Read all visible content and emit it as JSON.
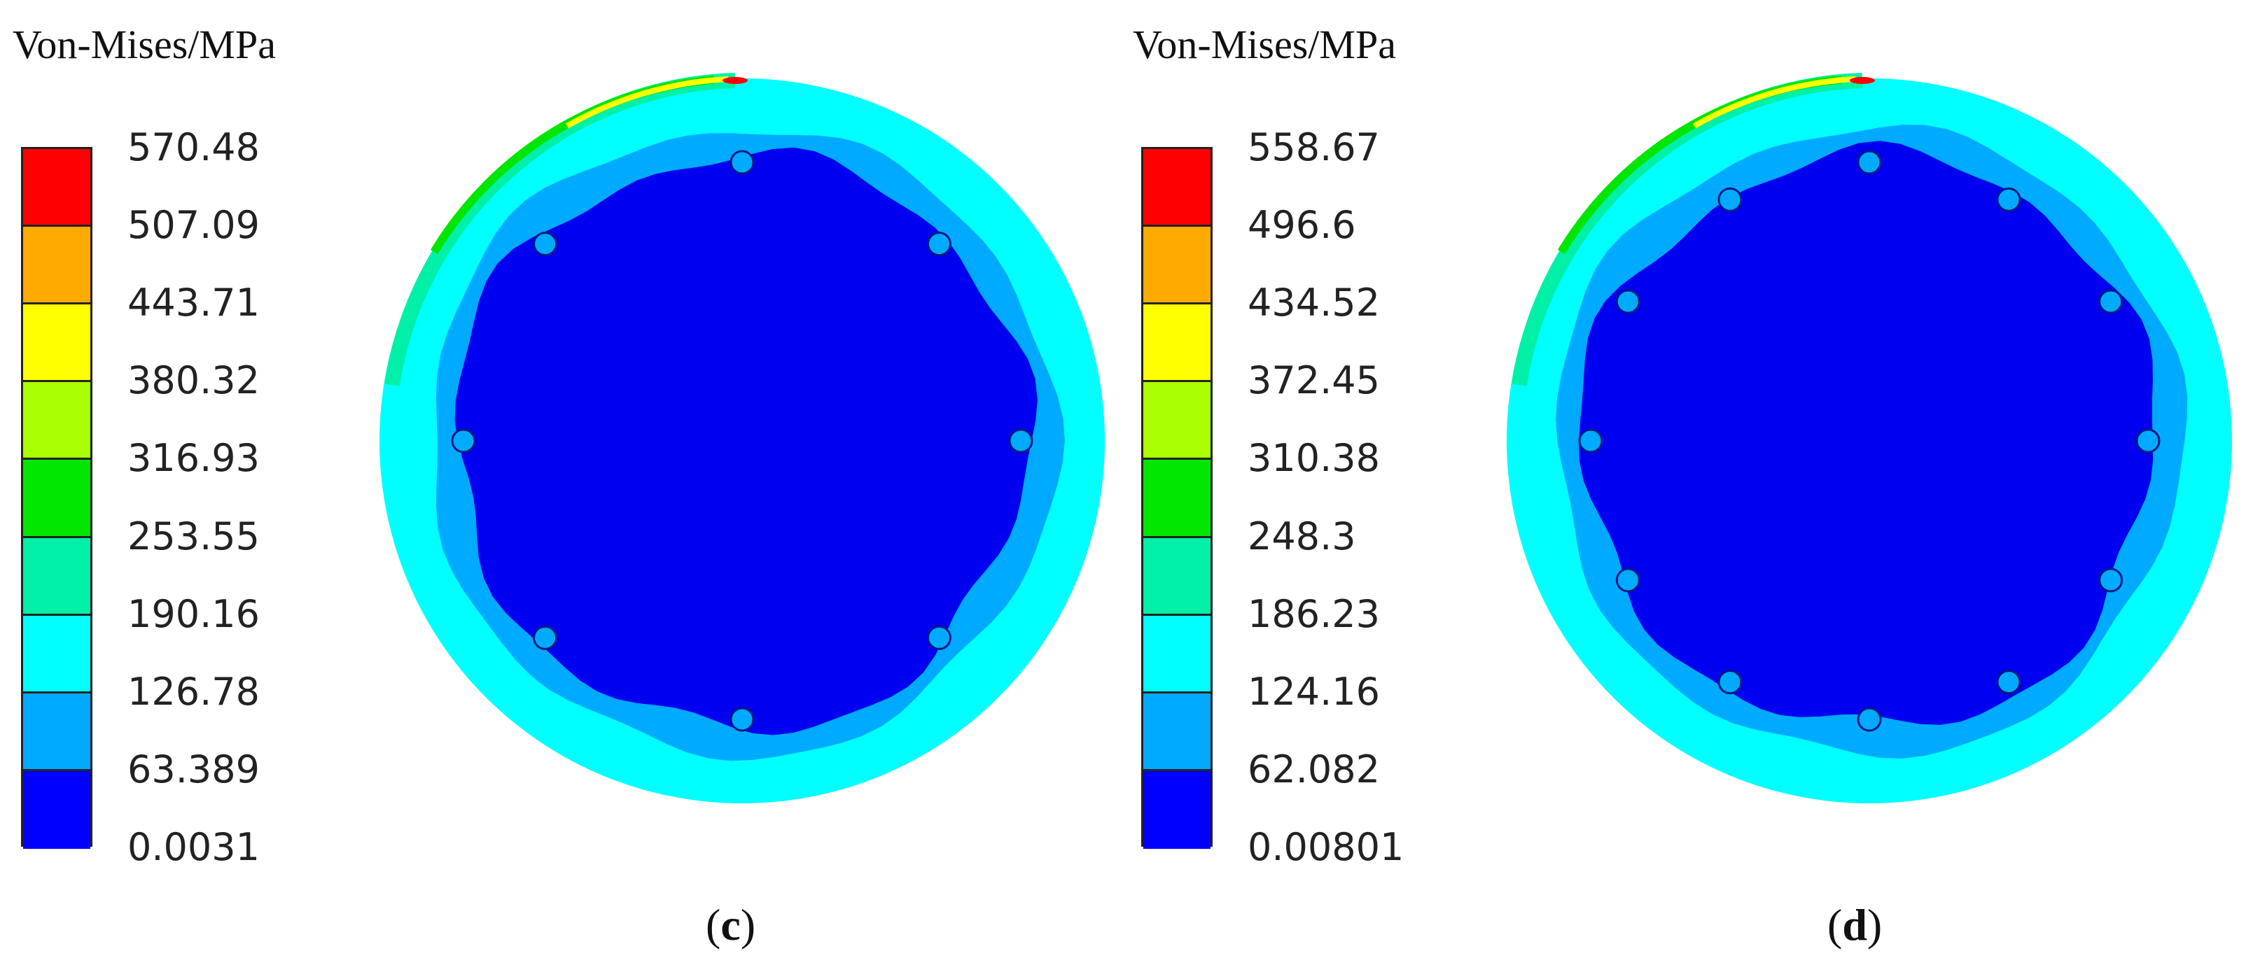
{
  "legend_colors": [
    "#ff0000",
    "#ffaa00",
    "#ffff00",
    "#aaff00",
    "#00e600",
    "#00f0a8",
    "#00ffff",
    "#00aaff",
    "#0000ff"
  ],
  "contour_colors": {
    "bolt_circle": "#0000f0",
    "band_1": "#00aaff",
    "band_2": "#00ffff",
    "band_3": "#00f0a8",
    "hot_1": "#00e600",
    "hot_2": "#aaff00",
    "hot_3": "#ffff00",
    "hot_4": "#ff0000"
  },
  "panels": [
    {
      "id": "c",
      "legend_title": "Von-Mises/MPa",
      "legend_values": [
        "570.48",
        "507.09",
        "443.71",
        "380.32",
        "316.93",
        "253.55",
        "190.16",
        "126.78",
        "63.389",
        "0.0031"
      ],
      "caption_open": "(",
      "caption_letter": "c",
      "caption_close": ")",
      "bolt_holes": 8
    },
    {
      "id": "d",
      "legend_title": "Von-Mises/MPa",
      "legend_values": [
        "558.67",
        "496.6",
        "434.52",
        "372.45",
        "310.38",
        "248.3",
        "186.23",
        "124.16",
        "62.082",
        "0.00801"
      ],
      "caption_open": "(",
      "caption_letter": "d",
      "caption_close": ")",
      "bolt_holes": 12
    }
  ]
}
